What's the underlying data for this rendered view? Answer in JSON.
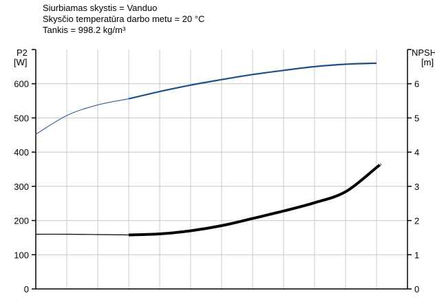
{
  "header": {
    "line1": "Siurbiamas skystis = Vanduo",
    "line2": "Skysčio temperatūra darbo metu = 20 °C",
    "line3": "Tankis = 998.2 kg/m³"
  },
  "chart_data": {
    "type": "line",
    "x_grid_divisions": 12,
    "left_axis": {
      "label_line1": "P2",
      "label_line2": "[W]",
      "ylim": [
        0,
        700
      ],
      "ticks": [
        0,
        100,
        200,
        300,
        400,
        500,
        600
      ],
      "tick_labels": [
        "0",
        "100",
        "200",
        "300",
        "400",
        "500",
        "600"
      ]
    },
    "right_axis": {
      "label_line1": "NPSH",
      "label_line2": "[m]",
      "ylim": [
        0,
        7
      ],
      "ticks": [
        0,
        1,
        2,
        3,
        4,
        5,
        6
      ],
      "tick_labels": [
        "0",
        "1",
        "2",
        "3",
        "4",
        "5",
        "6"
      ]
    },
    "grid": true,
    "series": [
      {
        "axis": "left",
        "color": "#1f4e8c",
        "x": [
          0,
          1,
          2,
          3,
          4,
          5,
          6,
          7,
          8,
          9,
          10,
          11
        ],
        "values": [
          452,
          507,
          538,
          556,
          577,
          596,
          612,
          627,
          639,
          650,
          657,
          660
        ],
        "emphasis_from_x": 3
      },
      {
        "axis": "right",
        "color": "#000000",
        "x": [
          0,
          1,
          2,
          3,
          4,
          5,
          6,
          7,
          8,
          9,
          10,
          11,
          11.1
        ],
        "values": [
          1.6,
          1.6,
          1.59,
          1.58,
          1.61,
          1.7,
          1.85,
          2.06,
          2.28,
          2.52,
          2.84,
          3.55,
          3.63
        ],
        "emphasis_from_x": 3
      }
    ]
  }
}
